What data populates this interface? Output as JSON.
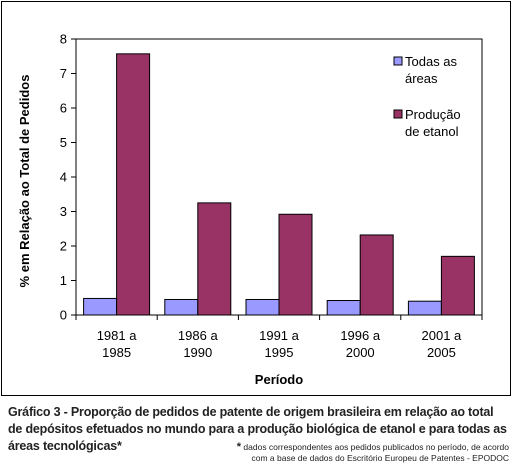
{
  "chart_data": {
    "type": "bar",
    "categories": [
      [
        "1981 a",
        "1985"
      ],
      [
        "1986 a",
        "1990"
      ],
      [
        "1991 a",
        "1995"
      ],
      [
        "1996 a",
        "2000"
      ],
      [
        "2001 a",
        "2005"
      ]
    ],
    "series": [
      {
        "name": "Todas as áreas",
        "name_lines": [
          "Todas as",
          "áreas"
        ],
        "color": "#9999ff",
        "values": [
          0.48,
          0.45,
          0.45,
          0.42,
          0.4
        ]
      },
      {
        "name": "Produção de etanol",
        "name_lines": [
          "Produção",
          "de etanol"
        ],
        "color": "#993366",
        "values": [
          7.57,
          3.25,
          2.92,
          2.32,
          1.7
        ]
      }
    ],
    "xlabel": "Período",
    "ylabel": "% em Relação ao Total de Pedidos",
    "ylim": [
      0,
      8
    ],
    "yticks": [
      "0",
      "1",
      "2",
      "3",
      "4",
      "5",
      "6",
      "7",
      "8"
    ],
    "grid": false,
    "legend_position": "right"
  },
  "caption": {
    "prefix": "Gráfico 3 -",
    "text": " Proporção de pedidos de patente de origem brasileira em relação ao total de depósitos efetuados no mundo para a produção biológica de etanol e para todas as áreas tecnológicas",
    "star": "*"
  },
  "footnote": {
    "star": "*",
    "line1": " dados correspondentes aos pedidos publicados no período, de acordo",
    "line2": "com a base de dados do Escritório Europeu de Patentes - EPODOC"
  }
}
